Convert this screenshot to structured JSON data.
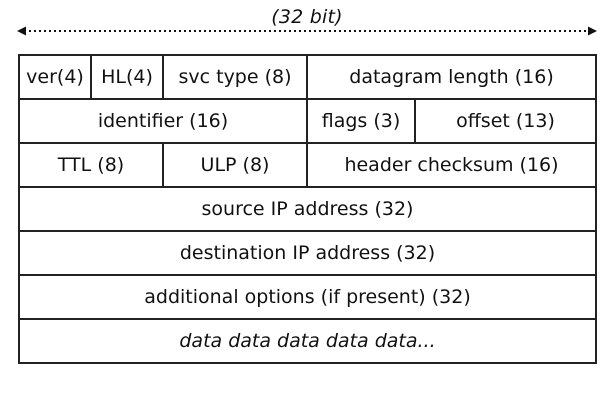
{
  "diagram": {
    "width_label": "(32 bit)",
    "rows": [
      {
        "fields": [
          {
            "label": "ver(4)"
          },
          {
            "label": "HL(4)"
          },
          {
            "label": "svc type (8)"
          },
          {
            "label": "datagram length (16)"
          }
        ]
      },
      {
        "fields": [
          {
            "label": "identifier (16)"
          },
          {
            "label": "flags (3)"
          },
          {
            "label": "offset (13)"
          }
        ]
      },
      {
        "fields": [
          {
            "label": "TTL (8)"
          },
          {
            "label": "ULP (8)"
          },
          {
            "label": "header checksum (16)"
          }
        ]
      },
      {
        "fields": [
          {
            "label": "source IP address (32)"
          }
        ]
      },
      {
        "fields": [
          {
            "label": "destination IP address (32)"
          }
        ]
      },
      {
        "fields": [
          {
            "label": "additional options (if present) (32)"
          }
        ]
      },
      {
        "fields": [
          {
            "label": "data data data data data..."
          }
        ]
      }
    ]
  }
}
